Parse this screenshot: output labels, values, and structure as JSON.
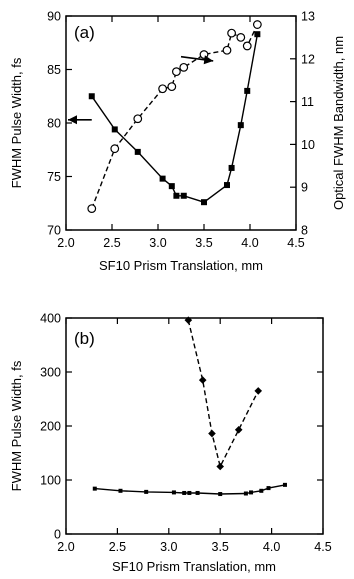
{
  "chart_data": [
    {
      "type": "line",
      "panel_label": "(a)",
      "xlabel": "SF10 Prism Translation, mm",
      "ylabel": "FWHM Pulse Width, fs",
      "y2label": "Optical FWHM Bandwidth, nm",
      "xlim": [
        2.0,
        4.5
      ],
      "ylim": [
        70,
        90
      ],
      "y2lim": [
        8,
        13
      ],
      "xticks": [
        2.0,
        2.5,
        3.0,
        3.5,
        4.0,
        4.5
      ],
      "yticks": [
        70,
        75,
        80,
        85,
        90
      ],
      "y2ticks": [
        8,
        9,
        10,
        11,
        12,
        13
      ],
      "xtick_labels": [
        "2.0",
        "2.5",
        "3.0",
        "3.5",
        "4.0",
        "4.5"
      ],
      "ytick_labels": [
        "70",
        "75",
        "80",
        "85",
        "90"
      ],
      "y2tick_labels": [
        "8",
        "9",
        "10",
        "11",
        "12",
        "13"
      ],
      "grid": false,
      "series": [
        {
          "axis": "left",
          "marker": "filled-square",
          "linestyle": "solid",
          "x": [
            2.28,
            2.53,
            2.78,
            3.05,
            3.15,
            3.2,
            3.28,
            3.5,
            3.75,
            3.8,
            3.9,
            3.97,
            4.08
          ],
          "y": [
            82.5,
            79.4,
            77.3,
            74.8,
            74.1,
            73.2,
            73.2,
            72.6,
            74.2,
            75.8,
            79.8,
            83.0,
            88.3
          ]
        },
        {
          "axis": "right",
          "marker": "open-circle",
          "linestyle": "dashed",
          "x": [
            2.28,
            2.53,
            2.78,
            3.05,
            3.15,
            3.2,
            3.28,
            3.5,
            3.75,
            3.8,
            3.9,
            3.97,
            4.08
          ],
          "y": [
            8.5,
            9.9,
            10.6,
            11.3,
            11.35,
            11.7,
            11.8,
            12.1,
            12.2,
            12.6,
            12.5,
            12.3,
            12.8
          ]
        }
      ],
      "annotations": [
        {
          "type": "arrow",
          "direction": "left",
          "from": [
            2.28,
            80.3
          ],
          "to": [
            2.0,
            80.3
          ]
        },
        {
          "type": "arrow",
          "direction": "right",
          "from": [
            3.25,
            12.05
          ],
          "to": [
            3.6,
            11.95
          ]
        }
      ]
    },
    {
      "type": "line",
      "panel_label": "(b)",
      "xlabel": "SF10 Prism Translation, mm",
      "ylabel": "FWHM Pulse Width, fs",
      "xlim": [
        2.0,
        4.5
      ],
      "ylim": [
        0,
        400
      ],
      "xticks": [
        2.0,
        2.5,
        3.0,
        3.5,
        4.0,
        4.5
      ],
      "yticks": [
        0,
        100,
        200,
        300,
        400
      ],
      "xtick_labels": [
        "2.0",
        "2.5",
        "3.0",
        "3.5",
        "4.0",
        "4.5"
      ],
      "ytick_labels": [
        "0",
        "100",
        "200",
        "300",
        "400"
      ],
      "grid": false,
      "series": [
        {
          "marker": "small-filled-square",
          "linestyle": "solid",
          "x": [
            2.28,
            2.53,
            2.78,
            3.05,
            3.15,
            3.2,
            3.28,
            3.5,
            3.75,
            3.8,
            3.9,
            3.97,
            4.13
          ],
          "y": [
            84,
            80,
            78,
            77,
            76,
            76,
            76,
            74,
            75,
            77,
            80,
            85,
            91
          ]
        },
        {
          "marker": "filled-diamond",
          "linestyle": "dashed",
          "x": [
            3.19,
            3.33,
            3.42,
            3.5,
            3.68,
            3.87
          ],
          "y": [
            396,
            285,
            186,
            125,
            193,
            265
          ]
        }
      ]
    }
  ]
}
